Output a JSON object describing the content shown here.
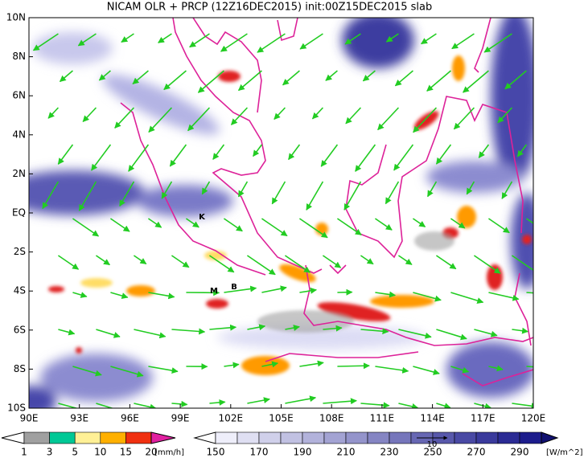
{
  "title": "NICAM OLR + PRCP (12Z16DEC2015) init:00Z15DEC2015 slab",
  "lon_labels": [
    "90E",
    "93E",
    "96E",
    "99E",
    "102E",
    "105E",
    "108E",
    "111E",
    "114E",
    "117E",
    "120E"
  ],
  "lat_labels": [
    "10N",
    "8N",
    "6N",
    "4N",
    "2N",
    "EQ",
    "2S",
    "4S",
    "6S",
    "8S",
    "10S"
  ],
  "stations": [
    {
      "label": "K"
    },
    {
      "label": "M"
    },
    {
      "label": "B"
    }
  ],
  "precip_colorbar": {
    "labels": [
      "1",
      "3",
      "5",
      "10",
      "15",
      "20"
    ],
    "unit": "[mm/h]"
  },
  "olr_colorbar": {
    "labels": [
      "150",
      "170",
      "190",
      "210",
      "230",
      "250",
      "270",
      "290"
    ],
    "unit": "[W/m^2]"
  },
  "vector_reference": "10"
}
